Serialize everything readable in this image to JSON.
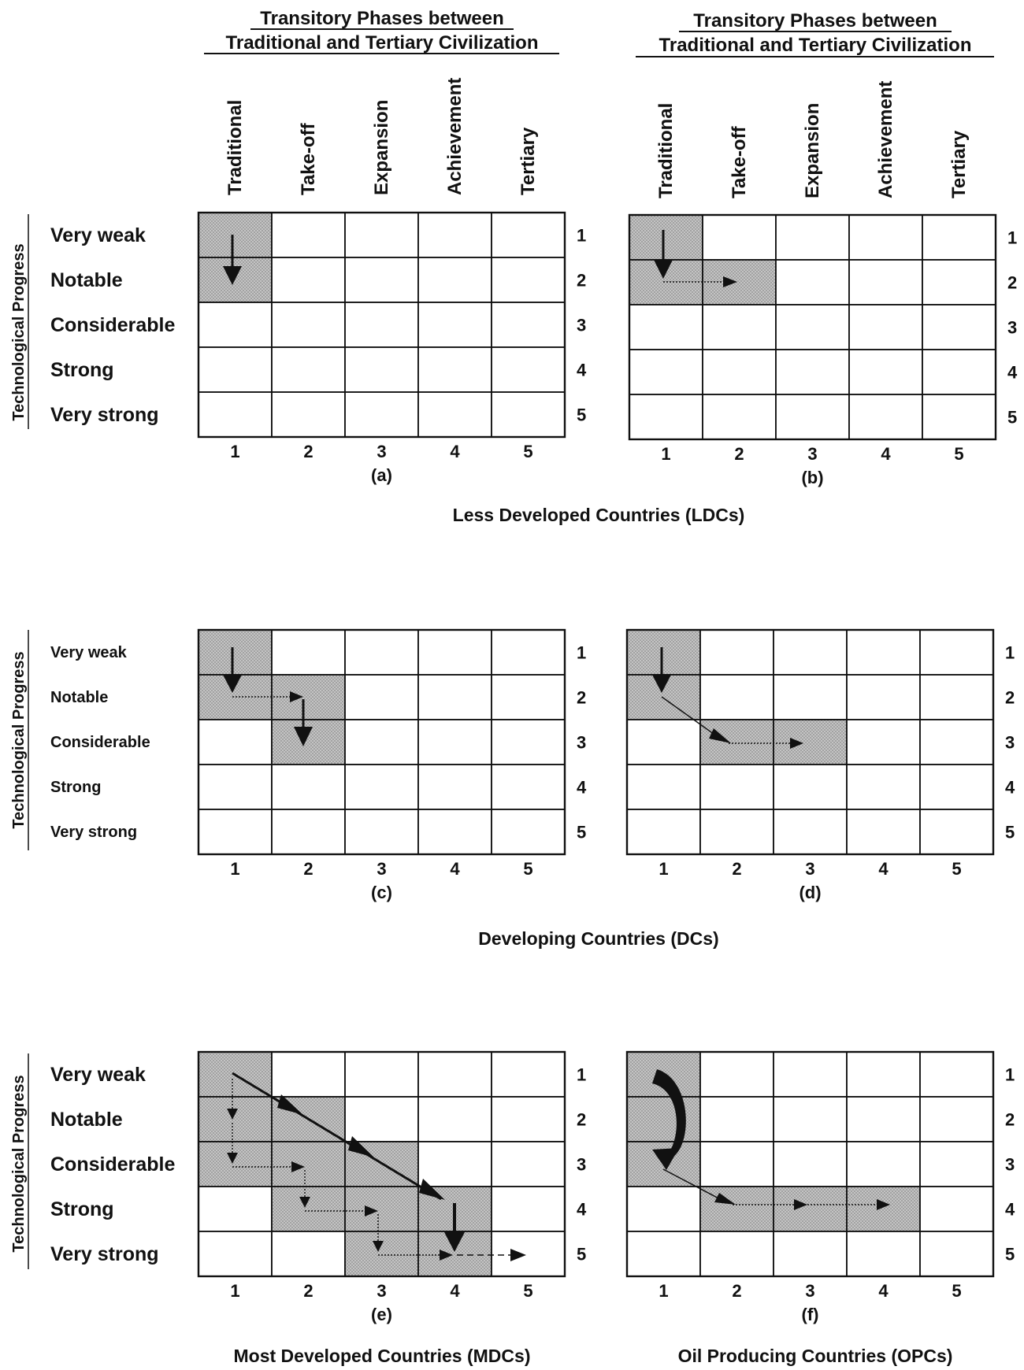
{
  "header": {
    "line1": "Transitory Phases between",
    "line2": "Traditional and Tertiary Civilization"
  },
  "phases": [
    "Traditional",
    "Take-off",
    "Expansion",
    "Achievement",
    "Tertiary"
  ],
  "y_axis_label": "Technological Progress",
  "levels": [
    "Very weak",
    "Notable",
    "Considerable",
    "Strong",
    "Very strong"
  ],
  "col_numbers": [
    "1",
    "2",
    "3",
    "4",
    "5"
  ],
  "row_numbers": [
    "1",
    "2",
    "3",
    "4",
    "5"
  ],
  "groups": {
    "ldc": "Less Developed Countries (LDCs)",
    "dc": "Developing Countries (DCs)",
    "mdc": "Most Developed Countries (MDCs)",
    "opc": "Oil Producing Countries (OPCs)"
  },
  "colors": {
    "shade": "#bdbdbd",
    "line": "#111111"
  },
  "panels": [
    {
      "id": "a",
      "label": "(a)",
      "shaded": [
        [
          1,
          1
        ],
        [
          1,
          2
        ]
      ]
    },
    {
      "id": "b",
      "label": "(b)",
      "shaded": [
        [
          1,
          1
        ],
        [
          1,
          2
        ],
        [
          2,
          2
        ]
      ]
    },
    {
      "id": "c",
      "label": "(c)",
      "shaded": [
        [
          1,
          1
        ],
        [
          1,
          2
        ],
        [
          2,
          2
        ],
        [
          2,
          3
        ]
      ]
    },
    {
      "id": "d",
      "label": "(d)",
      "shaded": [
        [
          1,
          1
        ],
        [
          1,
          2
        ],
        [
          2,
          3
        ],
        [
          3,
          3
        ]
      ]
    },
    {
      "id": "e",
      "label": "(e)",
      "shaded": [
        [
          1,
          1
        ],
        [
          1,
          2
        ],
        [
          2,
          2
        ],
        [
          1,
          3
        ],
        [
          2,
          3
        ],
        [
          3,
          3
        ],
        [
          2,
          4
        ],
        [
          3,
          4
        ],
        [
          4,
          4
        ],
        [
          3,
          5
        ],
        [
          4,
          5
        ]
      ]
    },
    {
      "id": "f",
      "label": "(f)",
      "shaded": [
        [
          1,
          1
        ],
        [
          1,
          2
        ],
        [
          1,
          3
        ],
        [
          2,
          4
        ],
        [
          3,
          4
        ],
        [
          4,
          4
        ]
      ]
    }
  ]
}
